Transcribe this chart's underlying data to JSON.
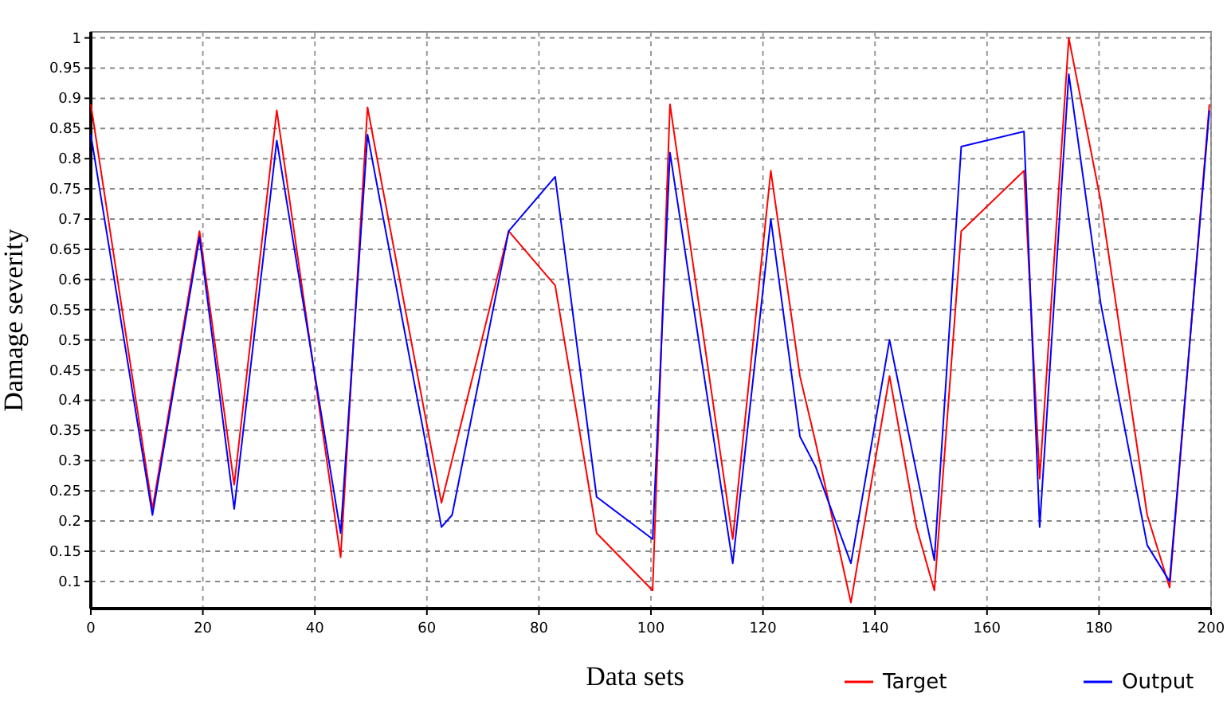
{
  "chart_data": {
    "type": "line",
    "xlabel": "Data sets",
    "ylabel": "Damage severity",
    "xlim": [
      0,
      200
    ],
    "xticks": [
      0,
      20,
      40,
      60,
      80,
      100,
      120,
      140,
      160,
      180,
      200
    ],
    "ylim": [
      0.055,
      1.01
    ],
    "yticks": [
      0.1,
      0.15,
      0.2,
      0.25,
      0.3,
      0.35,
      0.4,
      0.45,
      0.5,
      0.55,
      0.6,
      0.65,
      0.7,
      0.75,
      0.8,
      0.85,
      0.9,
      0.95,
      1
    ],
    "grid": true,
    "legend": "bottom right",
    "marker": "none",
    "line_style": "solid",
    "series": [
      {
        "name": "Target",
        "color": "#ff0000",
        "x": [
          0,
          11,
          19.4,
          25.6,
          33.2,
          44.6,
          49.4,
          62.6,
          74.6,
          82.9,
          90.3,
          100.3,
          103.4,
          114.6,
          121.4,
          126.6,
          129.4,
          135.7,
          142.6,
          147.4,
          150.6,
          155.4,
          166.6,
          169.4,
          174.6,
          180.3,
          188.6,
          192.6,
          199.7
        ],
        "values": [
          0.89,
          0.22,
          0.68,
          0.26,
          0.88,
          0.14,
          0.885,
          0.23,
          0.68,
          0.59,
          0.18,
          0.085,
          0.89,
          0.17,
          0.78,
          0.44,
          0.33,
          0.065,
          0.44,
          0.19,
          0.085,
          0.68,
          0.78,
          0.27,
          1.0,
          0.73,
          0.21,
          0.09,
          0.89
        ]
      },
      {
        "name": "Output",
        "color": "#0000ff",
        "x": [
          0,
          11,
          19.4,
          25.6,
          33.2,
          44.6,
          49.4,
          62.6,
          64.5,
          74.6,
          82.9,
          90.3,
          100.3,
          103.4,
          114.6,
          121.4,
          126.6,
          129.4,
          135.7,
          142.6,
          150.6,
          155.4,
          166.6,
          169.4,
          174.6,
          180.3,
          188.6,
          192.6,
          199.7
        ],
        "values": [
          0.84,
          0.21,
          0.67,
          0.22,
          0.83,
          0.18,
          0.84,
          0.19,
          0.21,
          0.68,
          0.77,
          0.24,
          0.17,
          0.81,
          0.13,
          0.7,
          0.34,
          0.29,
          0.13,
          0.5,
          0.135,
          0.82,
          0.845,
          0.19,
          0.94,
          0.56,
          0.16,
          0.1,
          0.88
        ]
      }
    ]
  }
}
